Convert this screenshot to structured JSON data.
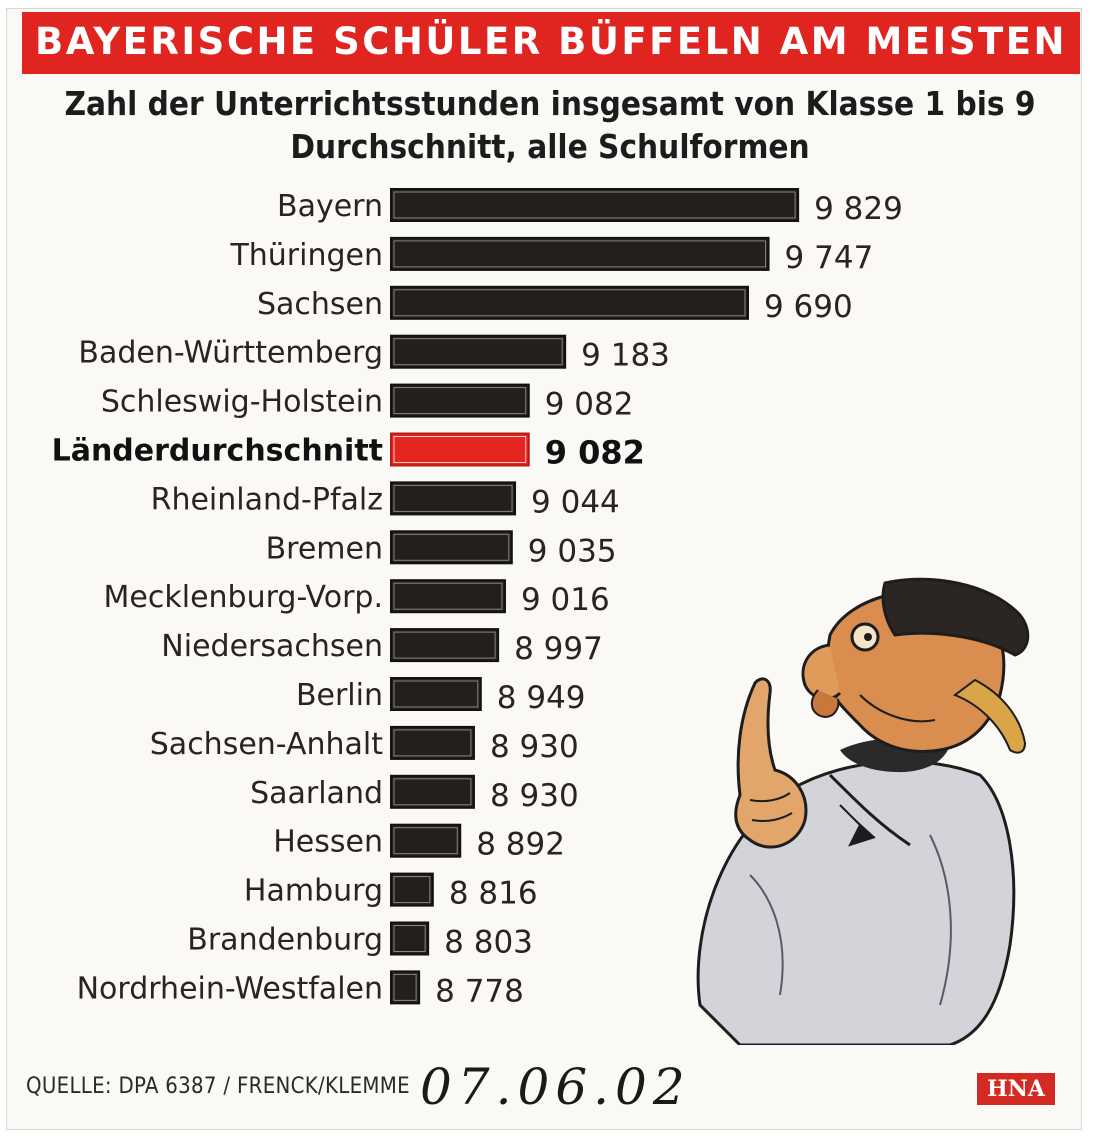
{
  "header": {
    "title": "BAYERISCHE SCHÜLER BÜFFELN AM MEISTEN",
    "subtitle_line1": "Zahl der Unterrichtsstunden insgesamt von Klasse 1 bis 9",
    "subtitle_line2": "Durchschnitt, alle Schulformen"
  },
  "chart_data": {
    "type": "bar",
    "orientation": "horizontal",
    "title": "BAYERISCHE SCHÜLER BÜFFELN AM MEISTEN",
    "subtitle": "Zahl der Unterrichtsstunden insgesamt von Klasse 1 bis 9 Durchschnitt, alle Schulformen",
    "categories": [
      "Bayern",
      "Thüringen",
      "Sachsen",
      "Baden-Württemberg",
      "Schleswig-Holstein",
      "Länderdurchschnitt",
      "Rheinland-Pfalz",
      "Bremen",
      "Mecklenburg-Vorp.",
      "Niedersachsen",
      "Berlin",
      "Sachsen-Anhalt",
      "Saarland",
      "Hessen",
      "Hamburg",
      "Brandenburg",
      "Nordrhein-Westfalen"
    ],
    "values": [
      9829,
      9747,
      9690,
      9183,
      9082,
      9082,
      9044,
      9035,
      9016,
      8997,
      8949,
      8930,
      8930,
      8892,
      8816,
      8803,
      8778
    ],
    "value_labels": [
      "9 829",
      "9 747",
      "9 690",
      "9 183",
      "9 082",
      "9 082",
      "9 044",
      "9 035",
      "9 016",
      "8 997",
      "8 949",
      "8 930",
      "8 930",
      "8 892",
      "8 816",
      "8 803",
      "8 778"
    ],
    "highlight_index": 5,
    "colors": {
      "bar": "#231f1c",
      "highlight": "#e3261f"
    },
    "grid": false,
    "legend": "none"
  },
  "footer": {
    "source": "QUELLE: DPA 6387 / FRENCK/KLEMME",
    "date_stamp": "07.06.02",
    "logo": "HNA"
  },
  "colors": {
    "banner": "#e02420",
    "logo": "#d42a24"
  },
  "illustration": "thinking-man-cartoon"
}
